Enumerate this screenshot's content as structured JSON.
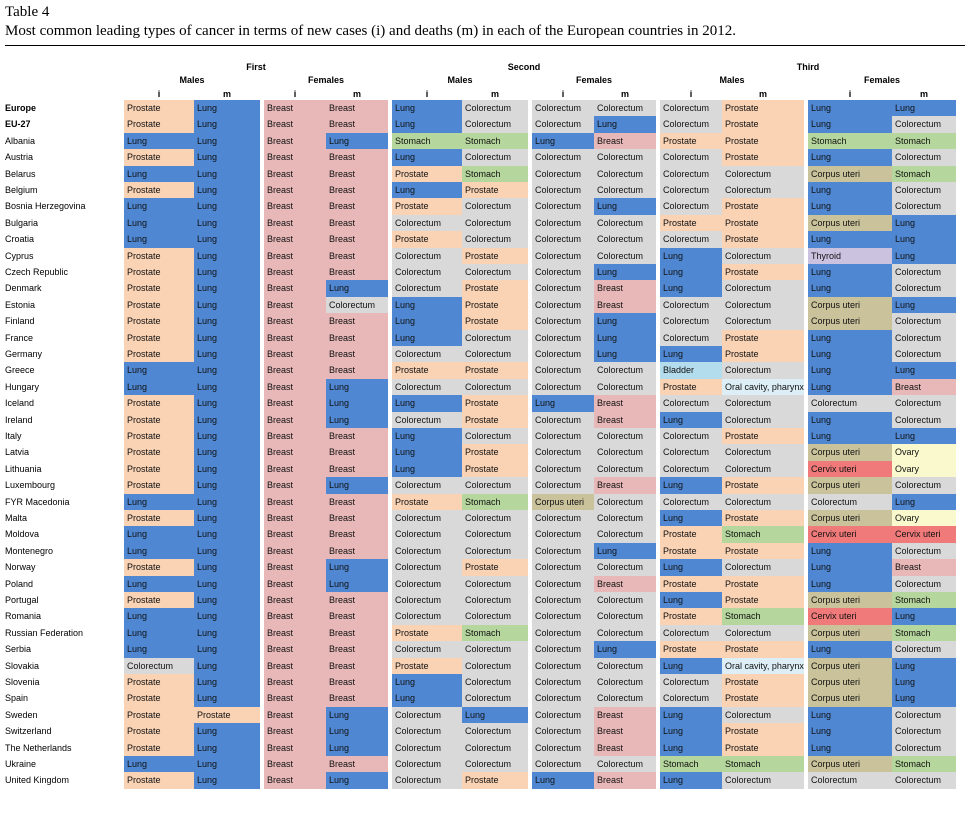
{
  "caption": {
    "label": "Table 4",
    "title": "Most common leading types of cancer in terms of new cases (i) and deaths (m) in each of the European countries in 2012."
  },
  "headers": {
    "ranks": [
      "First",
      "Second",
      "Third"
    ],
    "sexes": [
      "Males",
      "Females",
      "Males",
      "Females",
      "Males",
      "Females"
    ],
    "measures": [
      "i",
      "m",
      "i",
      "m",
      "i",
      "m",
      "i",
      "m",
      "i",
      "m",
      "i",
      "m"
    ]
  },
  "colors": {
    "Prostate": "#fad3b5",
    "Lung": "#4f87d2",
    "Breast": "#e8b8b8",
    "Colorectum": "#d9d9d9",
    "Stomach": "#b5d69c",
    "Corpus uteri": "#c9c29a",
    "Cervix uteri": "#f07a7a",
    "Ovary": "#f9f9cd",
    "Thyroid": "#cbc2e0",
    "Bladder": "#b3dced",
    "Oral cavity, pharynx": "#ddeef6"
  },
  "rows": [
    {
      "country": "Europe",
      "bold": true,
      "cells": [
        "Prostate",
        "Lung",
        "Breast",
        "Breast",
        "Lung",
        "Colorectum",
        "Colorectum",
        "Colorectum",
        "Colorectum",
        "Prostate",
        "Lung",
        "Lung"
      ]
    },
    {
      "country": "EU-27",
      "bold": true,
      "cells": [
        "Prostate",
        "Lung",
        "Breast",
        "Breast",
        "Lung",
        "Colorectum",
        "Colorectum",
        "Lung",
        "Colorectum",
        "Prostate",
        "Lung",
        "Colorectum"
      ]
    },
    {
      "country": "Albania",
      "cells": [
        "Lung",
        "Lung",
        "Breast",
        "Lung",
        "Stomach",
        "Stomach",
        "Lung",
        "Breast",
        "Prostate",
        "Prostate",
        "Stomach",
        "Stomach"
      ]
    },
    {
      "country": "Austria",
      "cells": [
        "Prostate",
        "Lung",
        "Breast",
        "Breast",
        "Lung",
        "Colorectum",
        "Colorectum",
        "Colorectum",
        "Colorectum",
        "Prostate",
        "Lung",
        "Colorectum"
      ]
    },
    {
      "country": "Belarus",
      "cells": [
        "Lung",
        "Lung",
        "Breast",
        "Breast",
        "Prostate",
        "Stomach",
        "Colorectum",
        "Colorectum",
        "Colorectum",
        "Colorectum",
        "Corpus uteri",
        "Stomach"
      ]
    },
    {
      "country": "Belgium",
      "cells": [
        "Prostate",
        "Lung",
        "Breast",
        "Breast",
        "Lung",
        "Prostate",
        "Colorectum",
        "Colorectum",
        "Colorectum",
        "Colorectum",
        "Lung",
        "Colorectum"
      ]
    },
    {
      "country": "Bosnia Herzegovina",
      "cells": [
        "Lung",
        "Lung",
        "Breast",
        "Breast",
        "Prostate",
        "Colorectum",
        "Colorectum",
        "Lung",
        "Colorectum",
        "Prostate",
        "Lung",
        "Colorectum"
      ]
    },
    {
      "country": "Bulgaria",
      "cells": [
        "Lung",
        "Lung",
        "Breast",
        "Breast",
        "Colorectum",
        "Colorectum",
        "Colorectum",
        "Colorectum",
        "Prostate",
        "Prostate",
        "Corpus uteri",
        "Lung"
      ]
    },
    {
      "country": "Croatia",
      "cells": [
        "Lung",
        "Lung",
        "Breast",
        "Breast",
        "Prostate",
        "Colorectum",
        "Colorectum",
        "Colorectum",
        "Colorectum",
        "Prostate",
        "Lung",
        "Lung"
      ]
    },
    {
      "country": "Cyprus",
      "cells": [
        "Prostate",
        "Lung",
        "Breast",
        "Breast",
        "Colorectum",
        "Prostate",
        "Colorectum",
        "Colorectum",
        "Lung",
        "Colorectum",
        "Thyroid",
        "Lung"
      ]
    },
    {
      "country": "Czech Republic",
      "cells": [
        "Prostate",
        "Lung",
        "Breast",
        "Breast",
        "Colorectum",
        "Colorectum",
        "Colorectum",
        "Lung",
        "Lung",
        "Prostate",
        "Lung",
        "Colorectum"
      ]
    },
    {
      "country": "Denmark",
      "cells": [
        "Prostate",
        "Lung",
        "Breast",
        "Lung",
        "Colorectum",
        "Prostate",
        "Colorectum",
        "Breast",
        "Lung",
        "Colorectum",
        "Lung",
        "Colorectum"
      ]
    },
    {
      "country": "Estonia",
      "cells": [
        "Prostate",
        "Lung",
        "Breast",
        "Colorectum",
        "Lung",
        "Prostate",
        "Colorectum",
        "Breast",
        "Colorectum",
        "Colorectum",
        "Corpus uteri",
        "Lung"
      ]
    },
    {
      "country": "Finland",
      "cells": [
        "Prostate",
        "Lung",
        "Breast",
        "Breast",
        "Lung",
        "Prostate",
        "Colorectum",
        "Lung",
        "Colorectum",
        "Colorectum",
        "Corpus uteri",
        "Colorectum"
      ]
    },
    {
      "country": "France",
      "cells": [
        "Prostate",
        "Lung",
        "Breast",
        "Breast",
        "Lung",
        "Colorectum",
        "Colorectum",
        "Lung",
        "Colorectum",
        "Prostate",
        "Lung",
        "Colorectum"
      ]
    },
    {
      "country": "Germany",
      "cells": [
        "Prostate",
        "Lung",
        "Breast",
        "Breast",
        "Colorectum",
        "Colorectum",
        "Colorectum",
        "Lung",
        "Lung",
        "Prostate",
        "Lung",
        "Colorectum"
      ]
    },
    {
      "country": "Greece",
      "cells": [
        "Lung",
        "Lung",
        "Breast",
        "Breast",
        "Prostate",
        "Prostate",
        "Colorectum",
        "Colorectum",
        "Bladder",
        "Colorectum",
        "Lung",
        "Lung"
      ]
    },
    {
      "country": "Hungary",
      "cells": [
        "Lung",
        "Lung",
        "Breast",
        "Lung",
        "Colorectum",
        "Colorectum",
        "Colorectum",
        "Colorectum",
        "Prostate",
        "Oral cavity, pharynx",
        "Lung",
        "Breast"
      ]
    },
    {
      "country": "Iceland",
      "cells": [
        "Prostate",
        "Lung",
        "Breast",
        "Lung",
        "Lung",
        "Prostate",
        "Lung",
        "Breast",
        "Colorectum",
        "Colorectum",
        "Colorectum",
        "Colorectum"
      ]
    },
    {
      "country": "Ireland",
      "cells": [
        "Prostate",
        "Lung",
        "Breast",
        "Lung",
        "Colorectum",
        "Prostate",
        "Colorectum",
        "Breast",
        "Lung",
        "Colorectum",
        "Lung",
        "Colorectum"
      ]
    },
    {
      "country": "Italy",
      "cells": [
        "Prostate",
        "Lung",
        "Breast",
        "Breast",
        "Lung",
        "Colorectum",
        "Colorectum",
        "Colorectum",
        "Colorectum",
        "Prostate",
        "Lung",
        "Lung"
      ]
    },
    {
      "country": "Latvia",
      "cells": [
        "Prostate",
        "Lung",
        "Breast",
        "Breast",
        "Lung",
        "Prostate",
        "Colorectum",
        "Colorectum",
        "Colorectum",
        "Colorectum",
        "Corpus uteri",
        "Ovary"
      ]
    },
    {
      "country": "Lithuania",
      "cells": [
        "Prostate",
        "Lung",
        "Breast",
        "Breast",
        "Lung",
        "Prostate",
        "Colorectum",
        "Colorectum",
        "Colorectum",
        "Colorectum",
        "Cervix uteri",
        "Ovary"
      ]
    },
    {
      "country": "Luxembourg",
      "cells": [
        "Prostate",
        "Lung",
        "Breast",
        "Lung",
        "Colorectum",
        "Colorectum",
        "Colorectum",
        "Breast",
        "Lung",
        "Prostate",
        "Corpus uteri",
        "Colorectum"
      ]
    },
    {
      "country": "FYR Macedonia",
      "cells": [
        "Lung",
        "Lung",
        "Breast",
        "Breast",
        "Prostate",
        "Stomach",
        "Corpus uteri",
        "Colorectum",
        "Colorectum",
        "Colorectum",
        "Colorectum",
        "Lung"
      ]
    },
    {
      "country": "Malta",
      "cells": [
        "Prostate",
        "Lung",
        "Breast",
        "Breast",
        "Colorectum",
        "Colorectum",
        "Colorectum",
        "Colorectum",
        "Lung",
        "Prostate",
        "Corpus uteri",
        "Ovary"
      ]
    },
    {
      "country": "Moldova",
      "cells": [
        "Lung",
        "Lung",
        "Breast",
        "Breast",
        "Colorectum",
        "Colorectum",
        "Colorectum",
        "Colorectum",
        "Prostate",
        "Stomach",
        "Cervix uteri",
        "Cervix uteri"
      ]
    },
    {
      "country": "Montenegro",
      "cells": [
        "Lung",
        "Lung",
        "Breast",
        "Breast",
        "Colorectum",
        "Colorectum",
        "Colorectum",
        "Lung",
        "Prostate",
        "Prostate",
        "Lung",
        "Colorectum"
      ]
    },
    {
      "country": "Norway",
      "cells": [
        "Prostate",
        "Lung",
        "Breast",
        "Lung",
        "Colorectum",
        "Prostate",
        "Colorectum",
        "Colorectum",
        "Lung",
        "Colorectum",
        "Lung",
        "Breast"
      ]
    },
    {
      "country": "Poland",
      "cells": [
        "Lung",
        "Lung",
        "Breast",
        "Lung",
        "Colorectum",
        "Colorectum",
        "Colorectum",
        "Breast",
        "Prostate",
        "Prostate",
        "Lung",
        "Colorectum"
      ]
    },
    {
      "country": "Portugal",
      "cells": [
        "Prostate",
        "Lung",
        "Breast",
        "Breast",
        "Colorectum",
        "Colorectum",
        "Colorectum",
        "Colorectum",
        "Lung",
        "Prostate",
        "Corpus uteri",
        "Stomach"
      ]
    },
    {
      "country": "Romania",
      "cells": [
        "Lung",
        "Lung",
        "Breast",
        "Breast",
        "Colorectum",
        "Colorectum",
        "Colorectum",
        "Colorectum",
        "Prostate",
        "Stomach",
        "Cervix uteri",
        "Lung"
      ]
    },
    {
      "country": "Russian Federation",
      "cells": [
        "Lung",
        "Lung",
        "Breast",
        "Breast",
        "Prostate",
        "Stomach",
        "Colorectum",
        "Colorectum",
        "Colorectum",
        "Colorectum",
        "Corpus uteri",
        "Stomach"
      ]
    },
    {
      "country": "Serbia",
      "cells": [
        "Lung",
        "Lung",
        "Breast",
        "Breast",
        "Colorectum",
        "Colorectum",
        "Colorectum",
        "Lung",
        "Prostate",
        "Prostate",
        "Lung",
        "Colorectum"
      ]
    },
    {
      "country": "Slovakia",
      "cells": [
        "Colorectum",
        "Lung",
        "Breast",
        "Breast",
        "Prostate",
        "Colorectum",
        "Colorectum",
        "Colorectum",
        "Lung",
        "Oral cavity, pharynx",
        "Corpus uteri",
        "Lung"
      ]
    },
    {
      "country": "Slovenia",
      "cells": [
        "Prostate",
        "Lung",
        "Breast",
        "Breast",
        "Lung",
        "Colorectum",
        "Colorectum",
        "Colorectum",
        "Colorectum",
        "Prostate",
        "Corpus uteri",
        "Lung"
      ]
    },
    {
      "country": "Spain",
      "cells": [
        "Prostate",
        "Lung",
        "Breast",
        "Breast",
        "Lung",
        "Colorectum",
        "Colorectum",
        "Colorectum",
        "Colorectum",
        "Prostate",
        "Corpus uteri",
        "Lung"
      ]
    },
    {
      "country": "Sweden",
      "cells": [
        "Prostate",
        "Prostate",
        "Breast",
        "Lung",
        "Colorectum",
        "Lung",
        "Colorectum",
        "Breast",
        "Lung",
        "Colorectum",
        "Lung",
        "Colorectum"
      ]
    },
    {
      "country": "Switzerland",
      "cells": [
        "Prostate",
        "Lung",
        "Breast",
        "Lung",
        "Colorectum",
        "Colorectum",
        "Colorectum",
        "Breast",
        "Lung",
        "Prostate",
        "Lung",
        "Colorectum"
      ]
    },
    {
      "country": "The Netherlands",
      "cells": [
        "Prostate",
        "Lung",
        "Breast",
        "Lung",
        "Colorectum",
        "Colorectum",
        "Colorectum",
        "Breast",
        "Lung",
        "Prostate",
        "Lung",
        "Colorectum"
      ]
    },
    {
      "country": "Ukraine",
      "cells": [
        "Lung",
        "Lung",
        "Breast",
        "Breast",
        "Colorectum",
        "Colorectum",
        "Colorectum",
        "Colorectum",
        "Stomach",
        "Stomach",
        "Corpus uteri",
        "Stomach"
      ]
    },
    {
      "country": "United Kingdom",
      "cells": [
        "Prostate",
        "Lung",
        "Breast",
        "Lung",
        "Colorectum",
        "Prostate",
        "Lung",
        "Breast",
        "Lung",
        "Colorectum",
        "Colorectum",
        "Colorectum"
      ]
    }
  ]
}
